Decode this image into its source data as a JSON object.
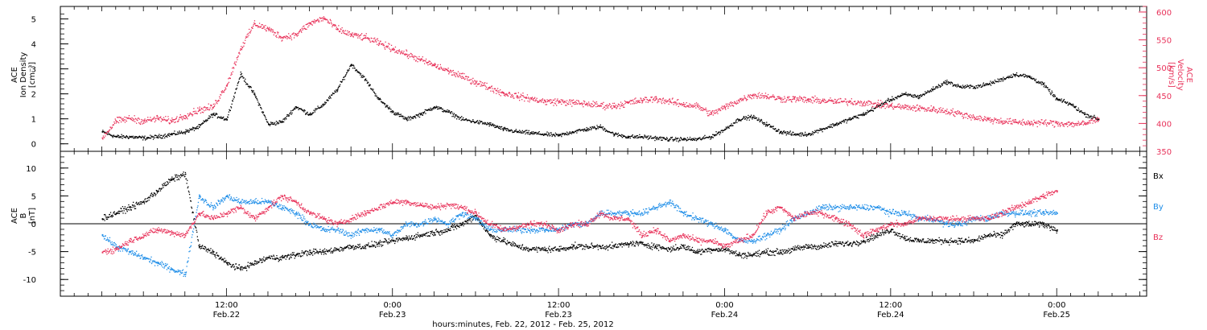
{
  "chart_data": [
    {
      "type": "scatter",
      "ylabel_lines": [
        "ACE",
        "Ion Density",
        "[cm⁻³]"
      ],
      "y2label_lines": [
        "ACE",
        "Velocity",
        "[km/s]"
      ],
      "ylim": [
        -0.3,
        5.5
      ],
      "y2lim": [
        350,
        610
      ],
      "yticks": [
        0,
        1,
        2,
        3,
        4,
        5
      ],
      "y2ticks": [
        350,
        400,
        450,
        500,
        550,
        600
      ],
      "colors": {
        "density": "#000000",
        "velocity": "#e8325a"
      },
      "series": [
        {
          "axis": "left",
          "color": "#000000",
          "x": [
            0.0,
            1.0,
            2.0,
            3.0,
            4.0,
            5.0,
            6.0,
            7.0,
            8.0,
            9.0,
            10.0,
            11.0,
            12.0,
            13.0,
            14.0,
            15.0,
            16.0,
            17.0,
            18.0,
            19.0,
            20.0,
            21.0,
            22.0,
            23.0,
            24.0,
            25.0,
            26.0,
            27.0,
            28.0,
            29.0,
            30.0,
            31.0,
            32.0,
            33.0,
            34.0,
            35.0,
            36.0,
            37.0,
            38.0,
            39.0,
            40.0,
            41.0,
            42.0,
            43.0,
            44.0,
            45.0,
            46.0,
            47.0,
            48.0,
            49.0,
            50.0,
            51.0,
            52.0,
            53.0,
            54.0,
            55.0,
            56.0,
            57.0,
            58.0,
            59.0,
            60.0,
            61.0,
            62.0,
            63.0,
            64.0,
            65.0,
            66.0,
            67.0,
            68.0,
            69.0,
            70.0,
            71.0,
            72.0
          ],
          "y": [
            0.5,
            0.3,
            0.3,
            0.25,
            0.3,
            0.4,
            0.5,
            0.7,
            1.2,
            1.0,
            2.8,
            2.0,
            0.8,
            0.9,
            1.5,
            1.2,
            1.6,
            2.2,
            3.2,
            2.6,
            1.8,
            1.3,
            1.0,
            1.2,
            1.5,
            1.3,
            1.0,
            0.9,
            0.8,
            0.6,
            0.5,
            0.45,
            0.4,
            0.35,
            0.5,
            0.6,
            0.7,
            0.4,
            0.3,
            0.3,
            0.25,
            0.2,
            0.2,
            0.2,
            0.3,
            0.6,
            1.0,
            1.1,
            0.8,
            0.5,
            0.4,
            0.4,
            0.6,
            0.8,
            1.0,
            1.2,
            1.5,
            1.8,
            2.0,
            1.9,
            2.2,
            2.5,
            2.3,
            2.3,
            2.4,
            2.6,
            2.8,
            2.7,
            2.4,
            1.8,
            1.6,
            1.2,
            1.0
          ]
        },
        {
          "axis": "right",
          "color": "#e8325a",
          "x": [
            0.0,
            1.0,
            2.0,
            3.0,
            4.0,
            5.0,
            6.0,
            7.0,
            8.0,
            9.0,
            10.0,
            11.0,
            12.0,
            13.0,
            14.0,
            15.0,
            16.0,
            17.0,
            18.0,
            19.0,
            20.0,
            21.0,
            22.0,
            23.0,
            24.0,
            25.0,
            26.0,
            27.0,
            28.0,
            29.0,
            30.0,
            31.0,
            32.0,
            33.0,
            34.0,
            35.0,
            36.0,
            37.0,
            38.0,
            39.0,
            40.0,
            41.0,
            42.0,
            43.0,
            44.0,
            45.0,
            46.0,
            47.0,
            48.0,
            49.0,
            50.0,
            51.0,
            52.0,
            53.0,
            54.0,
            55.0,
            56.0,
            57.0,
            58.0,
            59.0,
            60.0,
            61.0,
            62.0,
            63.0,
            64.0,
            65.0,
            66.0,
            67.0,
            68.0,
            69.0,
            70.0,
            71.0,
            72.0
          ],
          "y": [
            375,
            405,
            410,
            405,
            410,
            405,
            415,
            425,
            430,
            470,
            535,
            580,
            570,
            555,
            560,
            580,
            590,
            570,
            560,
            555,
            545,
            535,
            525,
            515,
            505,
            495,
            485,
            475,
            465,
            455,
            450,
            445,
            440,
            440,
            438,
            436,
            433,
            432,
            438,
            442,
            445,
            440,
            435,
            432,
            418,
            430,
            442,
            452,
            450,
            445,
            445,
            443,
            442,
            440,
            440,
            438,
            435,
            432,
            430,
            428,
            426,
            423,
            418,
            412,
            408,
            405,
            403,
            402,
            402,
            401,
            400,
            400,
            410
          ]
        }
      ]
    },
    {
      "type": "scatter",
      "ylabel_lines": [
        "ACE",
        "B",
        "[nT]"
      ],
      "ylim": [
        -13,
        13
      ],
      "yticks": [
        -10,
        -5,
        0,
        5,
        10
      ],
      "xticks": [
        {
          "x": 9,
          "time": "12:00",
          "date": "Feb.22"
        },
        {
          "x": 21,
          "time": "0:00",
          "date": "Feb.23"
        },
        {
          "x": 33,
          "time": "12:00",
          "date": "Feb.23"
        },
        {
          "x": 45,
          "time": "0:00",
          "date": "Feb.24"
        },
        {
          "x": 57,
          "time": "12:00",
          "date": "Feb.24"
        },
        {
          "x": 69,
          "time": "0:00",
          "date": "Feb.25"
        }
      ],
      "xlim": [
        -3,
        75.5
      ],
      "xlabel": "hours:minutes, Feb. 22, 2012 - Feb. 25, 2012",
      "legend": [
        "Bx",
        "By",
        "Bz"
      ],
      "colors": {
        "bx": "#000000",
        "by": "#1f8ee8",
        "bz": "#e8325a"
      },
      "series": [
        {
          "name": "Bx",
          "color": "#000000",
          "x": [
            0.0,
            1.0,
            2.0,
            3.0,
            4.0,
            5.0,
            6.0,
            7.0,
            8.0,
            9.0,
            10.0,
            11.0,
            12.0,
            13.0,
            14.0,
            15.0,
            16.0,
            17.0,
            18.0,
            19.0,
            20.0,
            21.0,
            22.0,
            23.0,
            24.0,
            25.0,
            26.0,
            27.0,
            28.0,
            29.0,
            30.0,
            31.0,
            32.0,
            33.0,
            34.0,
            35.0,
            36.0,
            37.0,
            38.0,
            39.0,
            40.0,
            41.0,
            42.0,
            43.0,
            44.0,
            45.0,
            46.0,
            47.0,
            48.0,
            49.0,
            50.0,
            51.0,
            52.0,
            53.0,
            54.0,
            55.0,
            56.0,
            57.0,
            58.0,
            59.0,
            60.0,
            61.0,
            62.0,
            63.0,
            64.0,
            65.0,
            66.0,
            67.0,
            68.0,
            69.0
          ],
          "y": [
            1,
            2,
            3,
            4,
            6,
            8,
            9,
            -4,
            -5,
            -7,
            -8,
            -7,
            -6,
            -6,
            -5.5,
            -5,
            -5,
            -4.5,
            -4,
            -4,
            -3.5,
            -3,
            -2.5,
            -2,
            -1.5,
            -1,
            0,
            1.5,
            -2,
            -3,
            -4,
            -4.5,
            -4.5,
            -4.5,
            -4,
            -4,
            -4,
            -4,
            -3.5,
            -3.5,
            -4,
            -4.5,
            -4,
            -5,
            -4.5,
            -4.5,
            -5.5,
            -5.5,
            -5,
            -5,
            -4.5,
            -4,
            -4,
            -3.5,
            -3.5,
            -3,
            -2,
            -1,
            -2.5,
            -3,
            -3,
            -3,
            -3,
            -3,
            -2,
            -2,
            0,
            0,
            0,
            -1
          ]
        },
        {
          "name": "By",
          "color": "#1f8ee8",
          "x": [
            0.0,
            1.0,
            2.0,
            3.0,
            4.0,
            5.0,
            6.0,
            7.0,
            8.0,
            9.0,
            10.0,
            11.0,
            12.0,
            13.0,
            14.0,
            15.0,
            16.0,
            17.0,
            18.0,
            19.0,
            20.0,
            21.0,
            22.0,
            23.0,
            24.0,
            25.0,
            26.0,
            27.0,
            28.0,
            29.0,
            30.0,
            31.0,
            32.0,
            33.0,
            34.0,
            35.0,
            36.0,
            37.0,
            38.0,
            39.0,
            40.0,
            41.0,
            42.0,
            43.0,
            44.0,
            45.0,
            46.0,
            47.0,
            48.0,
            49.0,
            50.0,
            51.0,
            52.0,
            53.0,
            54.0,
            55.0,
            56.0,
            57.0,
            58.0,
            59.0,
            60.0,
            61.0,
            62.0,
            63.0,
            64.0,
            65.0,
            66.0,
            67.0,
            68.0,
            69.0
          ],
          "y": [
            -2,
            -4,
            -5,
            -6,
            -7,
            -8,
            -9,
            5,
            3,
            5,
            4,
            4,
            4,
            3,
            2,
            0,
            -1,
            -1,
            -2,
            -1,
            -1,
            -2,
            0,
            0,
            1,
            0,
            2,
            1,
            -1,
            -1,
            -1,
            -1,
            -1,
            -1,
            0,
            0,
            2,
            2,
            2,
            2,
            3,
            4,
            2,
            1,
            0,
            -1,
            -3,
            -3,
            -2,
            -1,
            1,
            2,
            3,
            3,
            3,
            3,
            3,
            2,
            2,
            1,
            1,
            0,
            0,
            1,
            1,
            2,
            2,
            2,
            2,
            2
          ]
        },
        {
          "name": "Bz",
          "color": "#e8325a",
          "x": [
            0.0,
            1.0,
            2.0,
            3.0,
            4.0,
            5.0,
            6.0,
            7.0,
            8.0,
            9.0,
            10.0,
            11.0,
            12.0,
            13.0,
            14.0,
            15.0,
            16.0,
            17.0,
            18.0,
            19.0,
            20.0,
            21.0,
            22.0,
            23.0,
            24.0,
            25.0,
            26.0,
            27.0,
            28.0,
            29.0,
            30.0,
            31.0,
            32.0,
            33.0,
            34.0,
            35.0,
            36.0,
            37.0,
            38.0,
            39.0,
            40.0,
            41.0,
            42.0,
            43.0,
            44.0,
            45.0,
            46.0,
            47.0,
            48.0,
            49.0,
            50.0,
            51.0,
            52.0,
            53.0,
            54.0,
            55.0,
            56.0,
            57.0,
            58.0,
            59.0,
            60.0,
            61.0,
            62.0,
            63.0,
            64.0,
            65.0,
            66.0,
            67.0,
            68.0,
            69.0
          ],
          "y": [
            -5,
            -4.5,
            -3,
            -2,
            -1,
            -1.5,
            -2,
            2,
            1,
            2,
            3,
            1,
            3,
            5,
            4,
            2,
            1,
            0,
            1,
            2,
            3,
            4,
            4,
            3.5,
            3,
            3.5,
            3,
            2,
            0,
            -1,
            -0.5,
            0,
            0,
            -1,
            0,
            0,
            2,
            1,
            1,
            -2,
            -1,
            -3,
            -2,
            -3,
            -3,
            -4,
            -3,
            -2,
            2,
            3,
            1,
            2,
            2,
            1,
            0,
            -2,
            -1,
            0,
            0,
            1,
            1,
            1,
            1,
            1,
            1,
            2,
            3,
            4,
            5,
            6
          ]
        }
      ]
    }
  ]
}
